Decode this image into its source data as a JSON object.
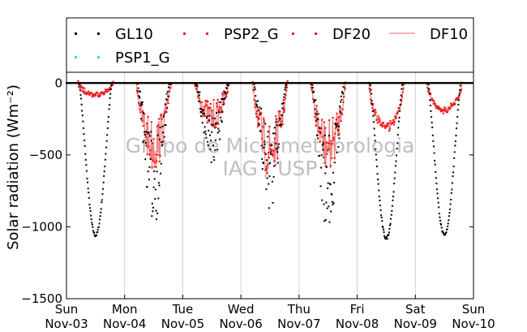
{
  "chart_data": {
    "type": "scatter",
    "ylabel": "Solar radiation (Wm⁻²)",
    "ylim": [
      -1500,
      75
    ],
    "yticks": [
      0,
      -500,
      -1000,
      -1500
    ],
    "ytick_labels": [
      "0",
      "−500",
      "−1000",
      "−1500"
    ],
    "xlim": [
      0,
      7
    ],
    "x_tick_positions": [
      0,
      1,
      2,
      3,
      4,
      5,
      6,
      7
    ],
    "x_tick_labels": [
      [
        "Sun",
        "Nov-03"
      ],
      [
        "Mon",
        "Nov-04"
      ],
      [
        "Tue",
        "Nov-05"
      ],
      [
        "Wed",
        "Nov-06"
      ],
      [
        "Thu",
        "Nov-07"
      ],
      [
        "Fri",
        "Nov-08"
      ],
      [
        "Sat",
        "Nov-09"
      ],
      [
        "Sun",
        "Nov-10"
      ]
    ],
    "grid": "vertical",
    "legend_placement": "top",
    "legend": [
      {
        "name": "GL10",
        "color": "#000000",
        "style": "dotted"
      },
      {
        "name": "PSP2_G",
        "color": "#e8201c",
        "style": "dotted"
      },
      {
        "name": "DF20",
        "color": "#e8201c",
        "style": "dotted"
      },
      {
        "name": "DF10",
        "color": "#f08080",
        "style": "line"
      },
      {
        "name": "PSP1_G",
        "color": "#3fd6c8",
        "style": "dotted"
      }
    ],
    "days": [
      {
        "day": "Nov-03",
        "gl10_min": -1060,
        "df_min": -85
      },
      {
        "day": "Nov-04",
        "gl10_min": -1000,
        "df_min": -620
      },
      {
        "day": "Nov-05",
        "gl10_min": -610,
        "df_min": -330
      },
      {
        "day": "Nov-06",
        "gl10_min": -900,
        "df_min": -680
      },
      {
        "day": "Nov-07",
        "gl10_min": -1050,
        "df_min": -640
      },
      {
        "day": "Nov-08",
        "gl10_min": -1080,
        "df_min": -330
      },
      {
        "day": "Nov-09",
        "gl10_min": -1060,
        "df_min": -200
      }
    ],
    "watermark": [
      "Grupo de Micrometeorologia",
      "IAG / USP"
    ]
  },
  "colors": {
    "gl10": "#000000",
    "psp2_g": "#e8201c",
    "df20": "#e8201c",
    "df10": "#f08080",
    "psp1_g": "#3fd6c8"
  }
}
